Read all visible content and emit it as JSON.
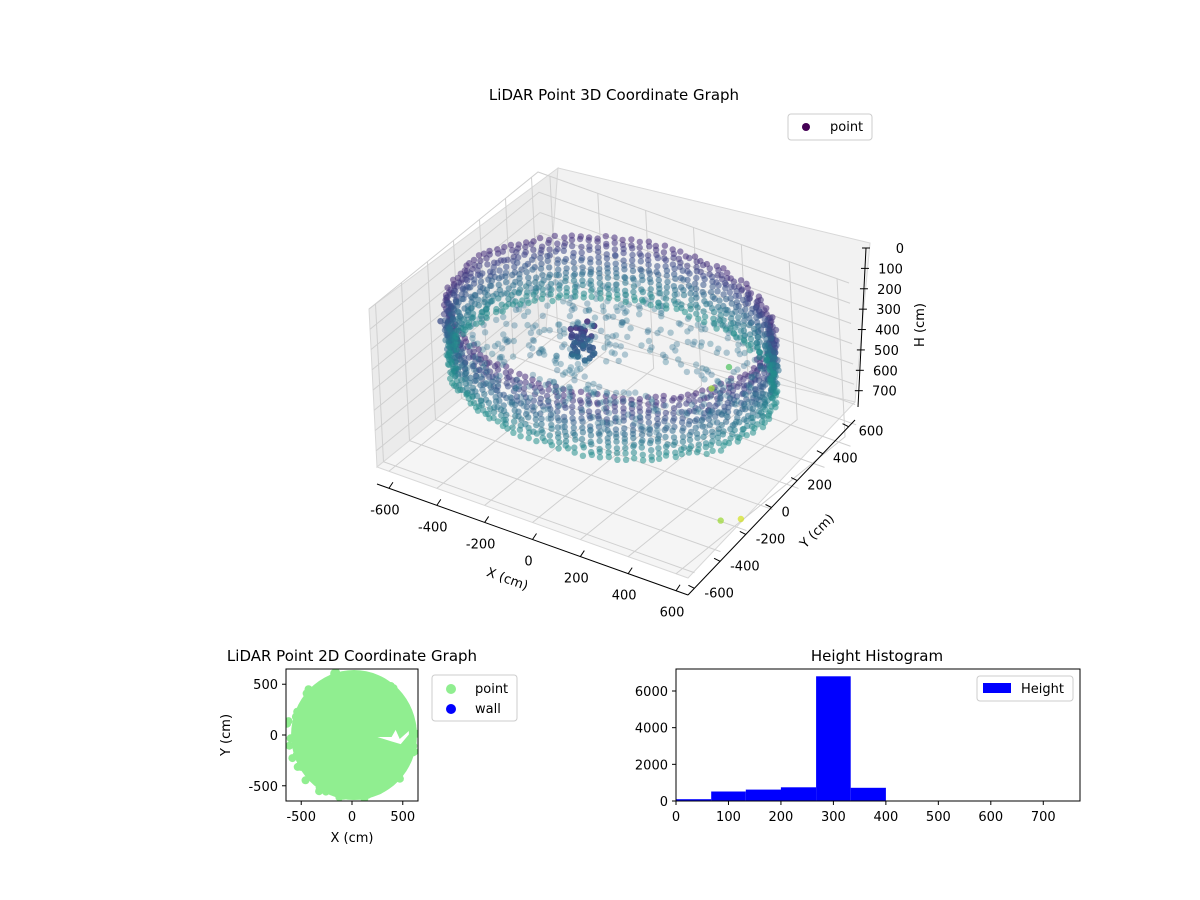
{
  "chart_data": [
    {
      "type": "scatter",
      "projection": "3d",
      "title": "LiDAR Point 3D Coordinate Graph",
      "xlabel": "X (cm)",
      "ylabel": "Y (cm)",
      "zlabel": "H (cm)",
      "xlim": [
        -650,
        650
      ],
      "ylim": [
        -650,
        650
      ],
      "zlim": [
        780,
        0
      ],
      "xticks": [
        -600,
        -400,
        -200,
        0,
        200,
        400,
        600
      ],
      "yticks": [
        -600,
        -400,
        -200,
        0,
        200,
        400,
        600
      ],
      "zticks": [
        0,
        100,
        200,
        300,
        400,
        500,
        600,
        700
      ],
      "colormap": "viridis",
      "grid": true,
      "legend_position": "upper-right",
      "series": [
        {
          "name": "point",
          "color": "#440154",
          "description_of_shape": "ring wall of points, radius about 600 cm, height 100-400 cm, plus floor points around 300 cm",
          "ring_radius": 600,
          "ring_height_range": [
            100,
            400
          ],
          "outliers": [
            {
              "x": -550,
              "y": 300,
              "h": 200
            },
            {
              "x": 600,
              "y": 350,
              "h": 130
            },
            {
              "x": 600,
              "y": 300,
              "h": 700
            },
            {
              "x": 600,
              "y": 150,
              "h": 770
            },
            {
              "x": 150,
              "y": -600,
              "h": 600
            },
            {
              "x": 100,
              "y": -550,
              "h": 700
            }
          ]
        }
      ]
    },
    {
      "type": "scatter",
      "title": "LiDAR Point 2D Coordinate Graph",
      "xlabel": "X (cm)",
      "ylabel": "Y (cm)",
      "xlim": [
        -650,
        650
      ],
      "ylim": [
        -650,
        650
      ],
      "xticks": [
        -500,
        0,
        500
      ],
      "yticks": [
        -500,
        0,
        500
      ],
      "legend_position": "outside-right",
      "series": [
        {
          "name": "point",
          "color": "#90ee90"
        },
        {
          "name": "wall",
          "color": "#0000ff"
        }
      ]
    },
    {
      "type": "bar",
      "title": "Height Histogram",
      "xlim": [
        0,
        770
      ],
      "ylim": [
        0,
        7200
      ],
      "xticks": [
        0,
        100,
        200,
        300,
        400,
        500,
        600,
        700
      ],
      "yticks": [
        0,
        2000,
        4000,
        6000
      ],
      "legend_position": "upper-right",
      "series": [
        {
          "name": "Height",
          "color": "#0000ff",
          "bins": [
            {
              "x0": 0,
              "x1": 67,
              "value": 100
            },
            {
              "x0": 67,
              "x1": 133,
              "value": 520
            },
            {
              "x0": 133,
              "x1": 200,
              "value": 620
            },
            {
              "x0": 200,
              "x1": 267,
              "value": 750
            },
            {
              "x0": 267,
              "x1": 333,
              "value": 6800
            },
            {
              "x0": 333,
              "x1": 400,
              "value": 720
            }
          ]
        }
      ]
    }
  ]
}
